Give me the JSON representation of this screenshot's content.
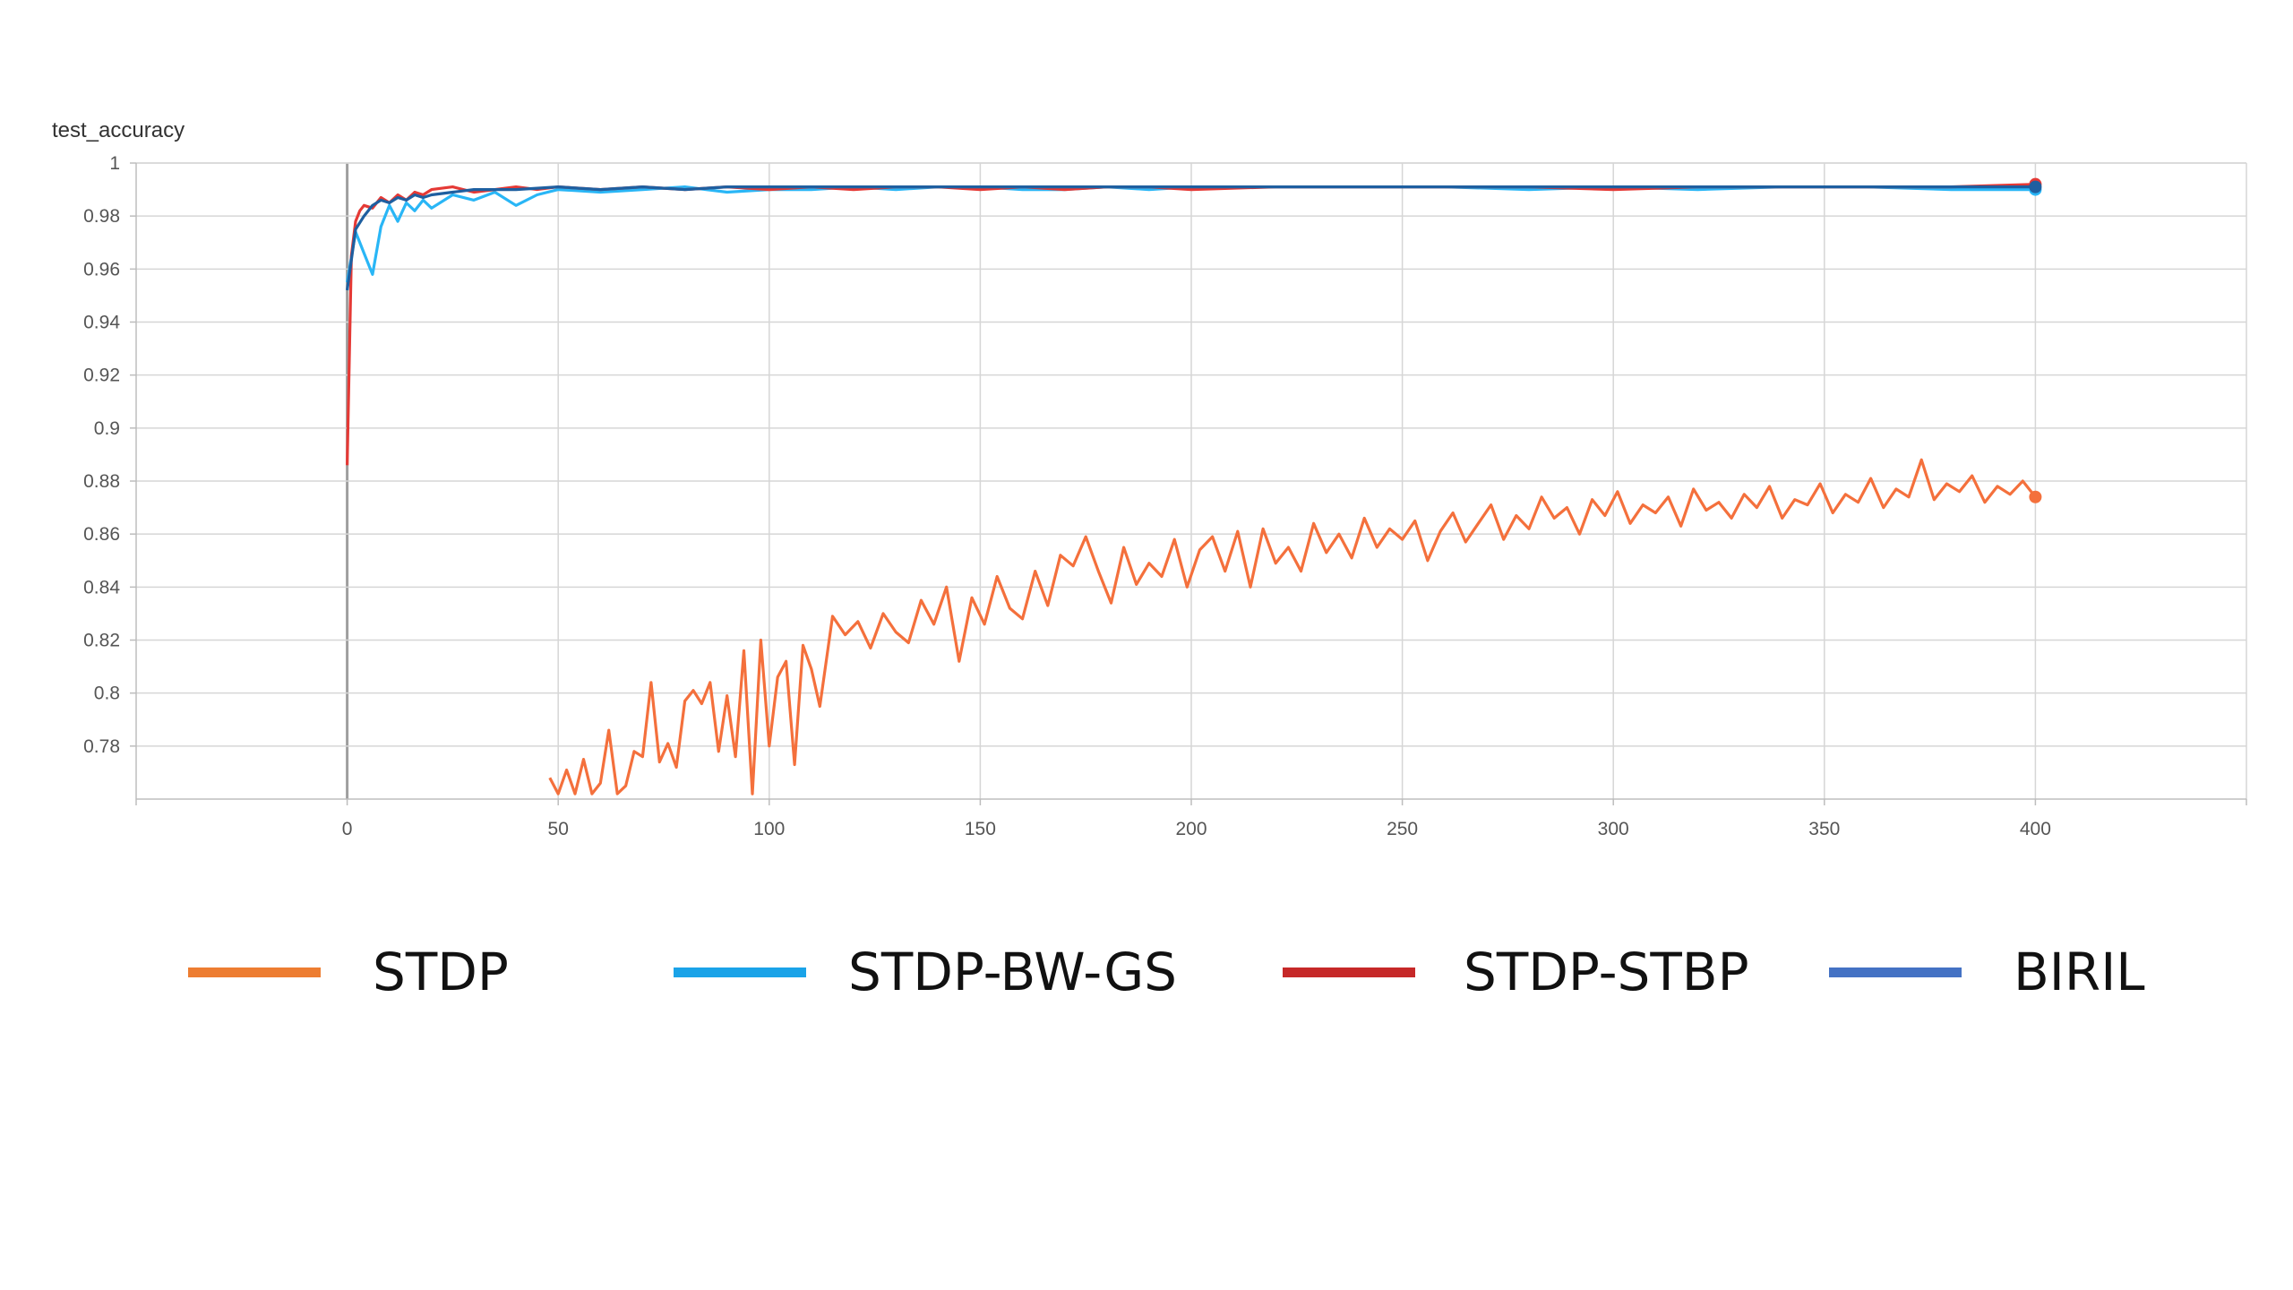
{
  "chart_data": {
    "type": "line",
    "title": "test_accuracy",
    "xlabel": "",
    "ylabel": "",
    "xlim": [
      -50,
      450
    ],
    "ylim": [
      0.76,
      1.0
    ],
    "x_ticks": [
      0,
      50,
      100,
      150,
      200,
      250,
      300,
      350,
      400
    ],
    "y_ticks": [
      0.78,
      0.8,
      0.82,
      0.84,
      0.86,
      0.88,
      0.9,
      0.92,
      0.94,
      0.96,
      0.98,
      1
    ],
    "y_tick_labels": [
      "0.78",
      "0.8",
      "0.82",
      "0.84",
      "0.86",
      "0.88",
      "0.9",
      "0.92",
      "0.94",
      "0.96",
      "0.98",
      "1"
    ],
    "grid": true,
    "legend_position": "bottom",
    "series": [
      {
        "name": "STDP",
        "color": "#f4703c",
        "legend_color": "#ed7d31",
        "x": [
          48,
          50,
          52,
          54,
          56,
          58,
          60,
          62,
          64,
          66,
          68,
          70,
          72,
          74,
          76,
          78,
          80,
          82,
          84,
          86,
          88,
          90,
          92,
          94,
          96,
          98,
          100,
          102,
          104,
          106,
          108,
          110,
          112,
          115,
          118,
          121,
          124,
          127,
          130,
          133,
          136,
          139,
          142,
          145,
          148,
          151,
          154,
          157,
          160,
          163,
          166,
          169,
          172,
          175,
          178,
          181,
          184,
          187,
          190,
          193,
          196,
          199,
          202,
          205,
          208,
          211,
          214,
          217,
          220,
          223,
          226,
          229,
          232,
          235,
          238,
          241,
          244,
          247,
          250,
          253,
          256,
          259,
          262,
          265,
          268,
          271,
          274,
          277,
          280,
          283,
          286,
          289,
          292,
          295,
          298,
          301,
          304,
          307,
          310,
          313,
          316,
          319,
          322,
          325,
          328,
          331,
          334,
          337,
          340,
          343,
          346,
          349,
          352,
          355,
          358,
          361,
          364,
          367,
          370,
          373,
          376,
          379,
          382,
          385,
          388,
          391,
          394,
          397,
          400
        ],
        "values": [
          0.768,
          0.762,
          0.771,
          0.762,
          0.775,
          0.762,
          0.766,
          0.786,
          0.762,
          0.765,
          0.778,
          0.776,
          0.804,
          0.774,
          0.781,
          0.772,
          0.797,
          0.801,
          0.796,
          0.804,
          0.778,
          0.799,
          0.776,
          0.816,
          0.762,
          0.82,
          0.78,
          0.806,
          0.812,
          0.773,
          0.818,
          0.809,
          0.795,
          0.829,
          0.822,
          0.827,
          0.817,
          0.83,
          0.823,
          0.819,
          0.835,
          0.826,
          0.84,
          0.812,
          0.836,
          0.826,
          0.844,
          0.832,
          0.828,
          0.846,
          0.833,
          0.852,
          0.848,
          0.859,
          0.846,
          0.834,
          0.855,
          0.841,
          0.849,
          0.844,
          0.858,
          0.84,
          0.854,
          0.859,
          0.846,
          0.861,
          0.84,
          0.862,
          0.849,
          0.855,
          0.846,
          0.864,
          0.853,
          0.86,
          0.851,
          0.866,
          0.855,
          0.862,
          0.858,
          0.865,
          0.85,
          0.861,
          0.868,
          0.857,
          0.864,
          0.871,
          0.858,
          0.867,
          0.862,
          0.874,
          0.866,
          0.87,
          0.86,
          0.873,
          0.867,
          0.876,
          0.864,
          0.871,
          0.868,
          0.874,
          0.863,
          0.877,
          0.869,
          0.872,
          0.866,
          0.875,
          0.87,
          0.878,
          0.866,
          0.873,
          0.871,
          0.879,
          0.868,
          0.875,
          0.872,
          0.881,
          0.87,
          0.877,
          0.874,
          0.888,
          0.873,
          0.879,
          0.876,
          0.882,
          0.872,
          0.878,
          0.875,
          0.88,
          0.874
        ]
      },
      {
        "name": "STDP-BW-GS",
        "color": "#29b6f6",
        "legend_color": "#1aa3e8",
        "x": [
          0,
          2,
          4,
          6,
          8,
          10,
          12,
          14,
          16,
          18,
          20,
          25,
          30,
          35,
          40,
          45,
          50,
          60,
          70,
          80,
          90,
          100,
          110,
          120,
          130,
          140,
          150,
          160,
          170,
          180,
          190,
          200,
          220,
          240,
          260,
          280,
          300,
          320,
          340,
          360,
          380,
          400
        ],
        "values": [
          0.955,
          0.974,
          0.966,
          0.958,
          0.976,
          0.984,
          0.978,
          0.985,
          0.982,
          0.986,
          0.983,
          0.988,
          0.986,
          0.989,
          0.984,
          0.988,
          0.99,
          0.989,
          0.99,
          0.991,
          0.989,
          0.99,
          0.99,
          0.991,
          0.99,
          0.991,
          0.991,
          0.99,
          0.99,
          0.991,
          0.99,
          0.991,
          0.991,
          0.991,
          0.991,
          0.99,
          0.991,
          0.99,
          0.991,
          0.991,
          0.99,
          0.99
        ]
      },
      {
        "name": "STDP-STBP",
        "color": "#e53935",
        "legend_color": "#c62828",
        "x": [
          0,
          1,
          2,
          3,
          4,
          6,
          8,
          10,
          12,
          14,
          16,
          18,
          20,
          25,
          30,
          35,
          40,
          45,
          50,
          60,
          70,
          80,
          90,
          100,
          110,
          120,
          130,
          140,
          150,
          160,
          170,
          180,
          190,
          200,
          220,
          240,
          260,
          280,
          300,
          320,
          340,
          360,
          380,
          400
        ],
        "values": [
          0.886,
          0.965,
          0.978,
          0.982,
          0.984,
          0.983,
          0.987,
          0.985,
          0.988,
          0.986,
          0.989,
          0.988,
          0.99,
          0.991,
          0.989,
          0.99,
          0.991,
          0.99,
          0.991,
          0.99,
          0.991,
          0.99,
          0.991,
          0.99,
          0.991,
          0.99,
          0.991,
          0.991,
          0.99,
          0.991,
          0.99,
          0.991,
          0.991,
          0.99,
          0.991,
          0.991,
          0.991,
          0.991,
          0.99,
          0.991,
          0.991,
          0.991,
          0.991,
          0.992
        ]
      },
      {
        "name": "BIRIL",
        "color": "#1e5fa0",
        "legend_color": "#4472c4",
        "x": [
          0,
          2,
          4,
          6,
          8,
          10,
          12,
          14,
          16,
          18,
          20,
          25,
          30,
          40,
          50,
          60,
          70,
          80,
          90,
          100,
          120,
          140,
          160,
          180,
          200,
          220,
          240,
          260,
          280,
          300,
          320,
          340,
          360,
          380,
          400
        ],
        "values": [
          0.952,
          0.975,
          0.98,
          0.984,
          0.986,
          0.985,
          0.987,
          0.986,
          0.988,
          0.987,
          0.988,
          0.989,
          0.99,
          0.99,
          0.991,
          0.99,
          0.991,
          0.99,
          0.991,
          0.991,
          0.991,
          0.991,
          0.991,
          0.991,
          0.991,
          0.991,
          0.991,
          0.991,
          0.991,
          0.991,
          0.991,
          0.991,
          0.991,
          0.991,
          0.991
        ]
      }
    ]
  },
  "legend": {
    "items": [
      {
        "label": "STDP",
        "color": "#ed7d31"
      },
      {
        "label": "STDP-BW-GS",
        "color": "#1aa3e8"
      },
      {
        "label": "STDP-STBP",
        "color": "#c62828"
      },
      {
        "label": "BIRIL",
        "color": "#4472c4"
      }
    ]
  }
}
